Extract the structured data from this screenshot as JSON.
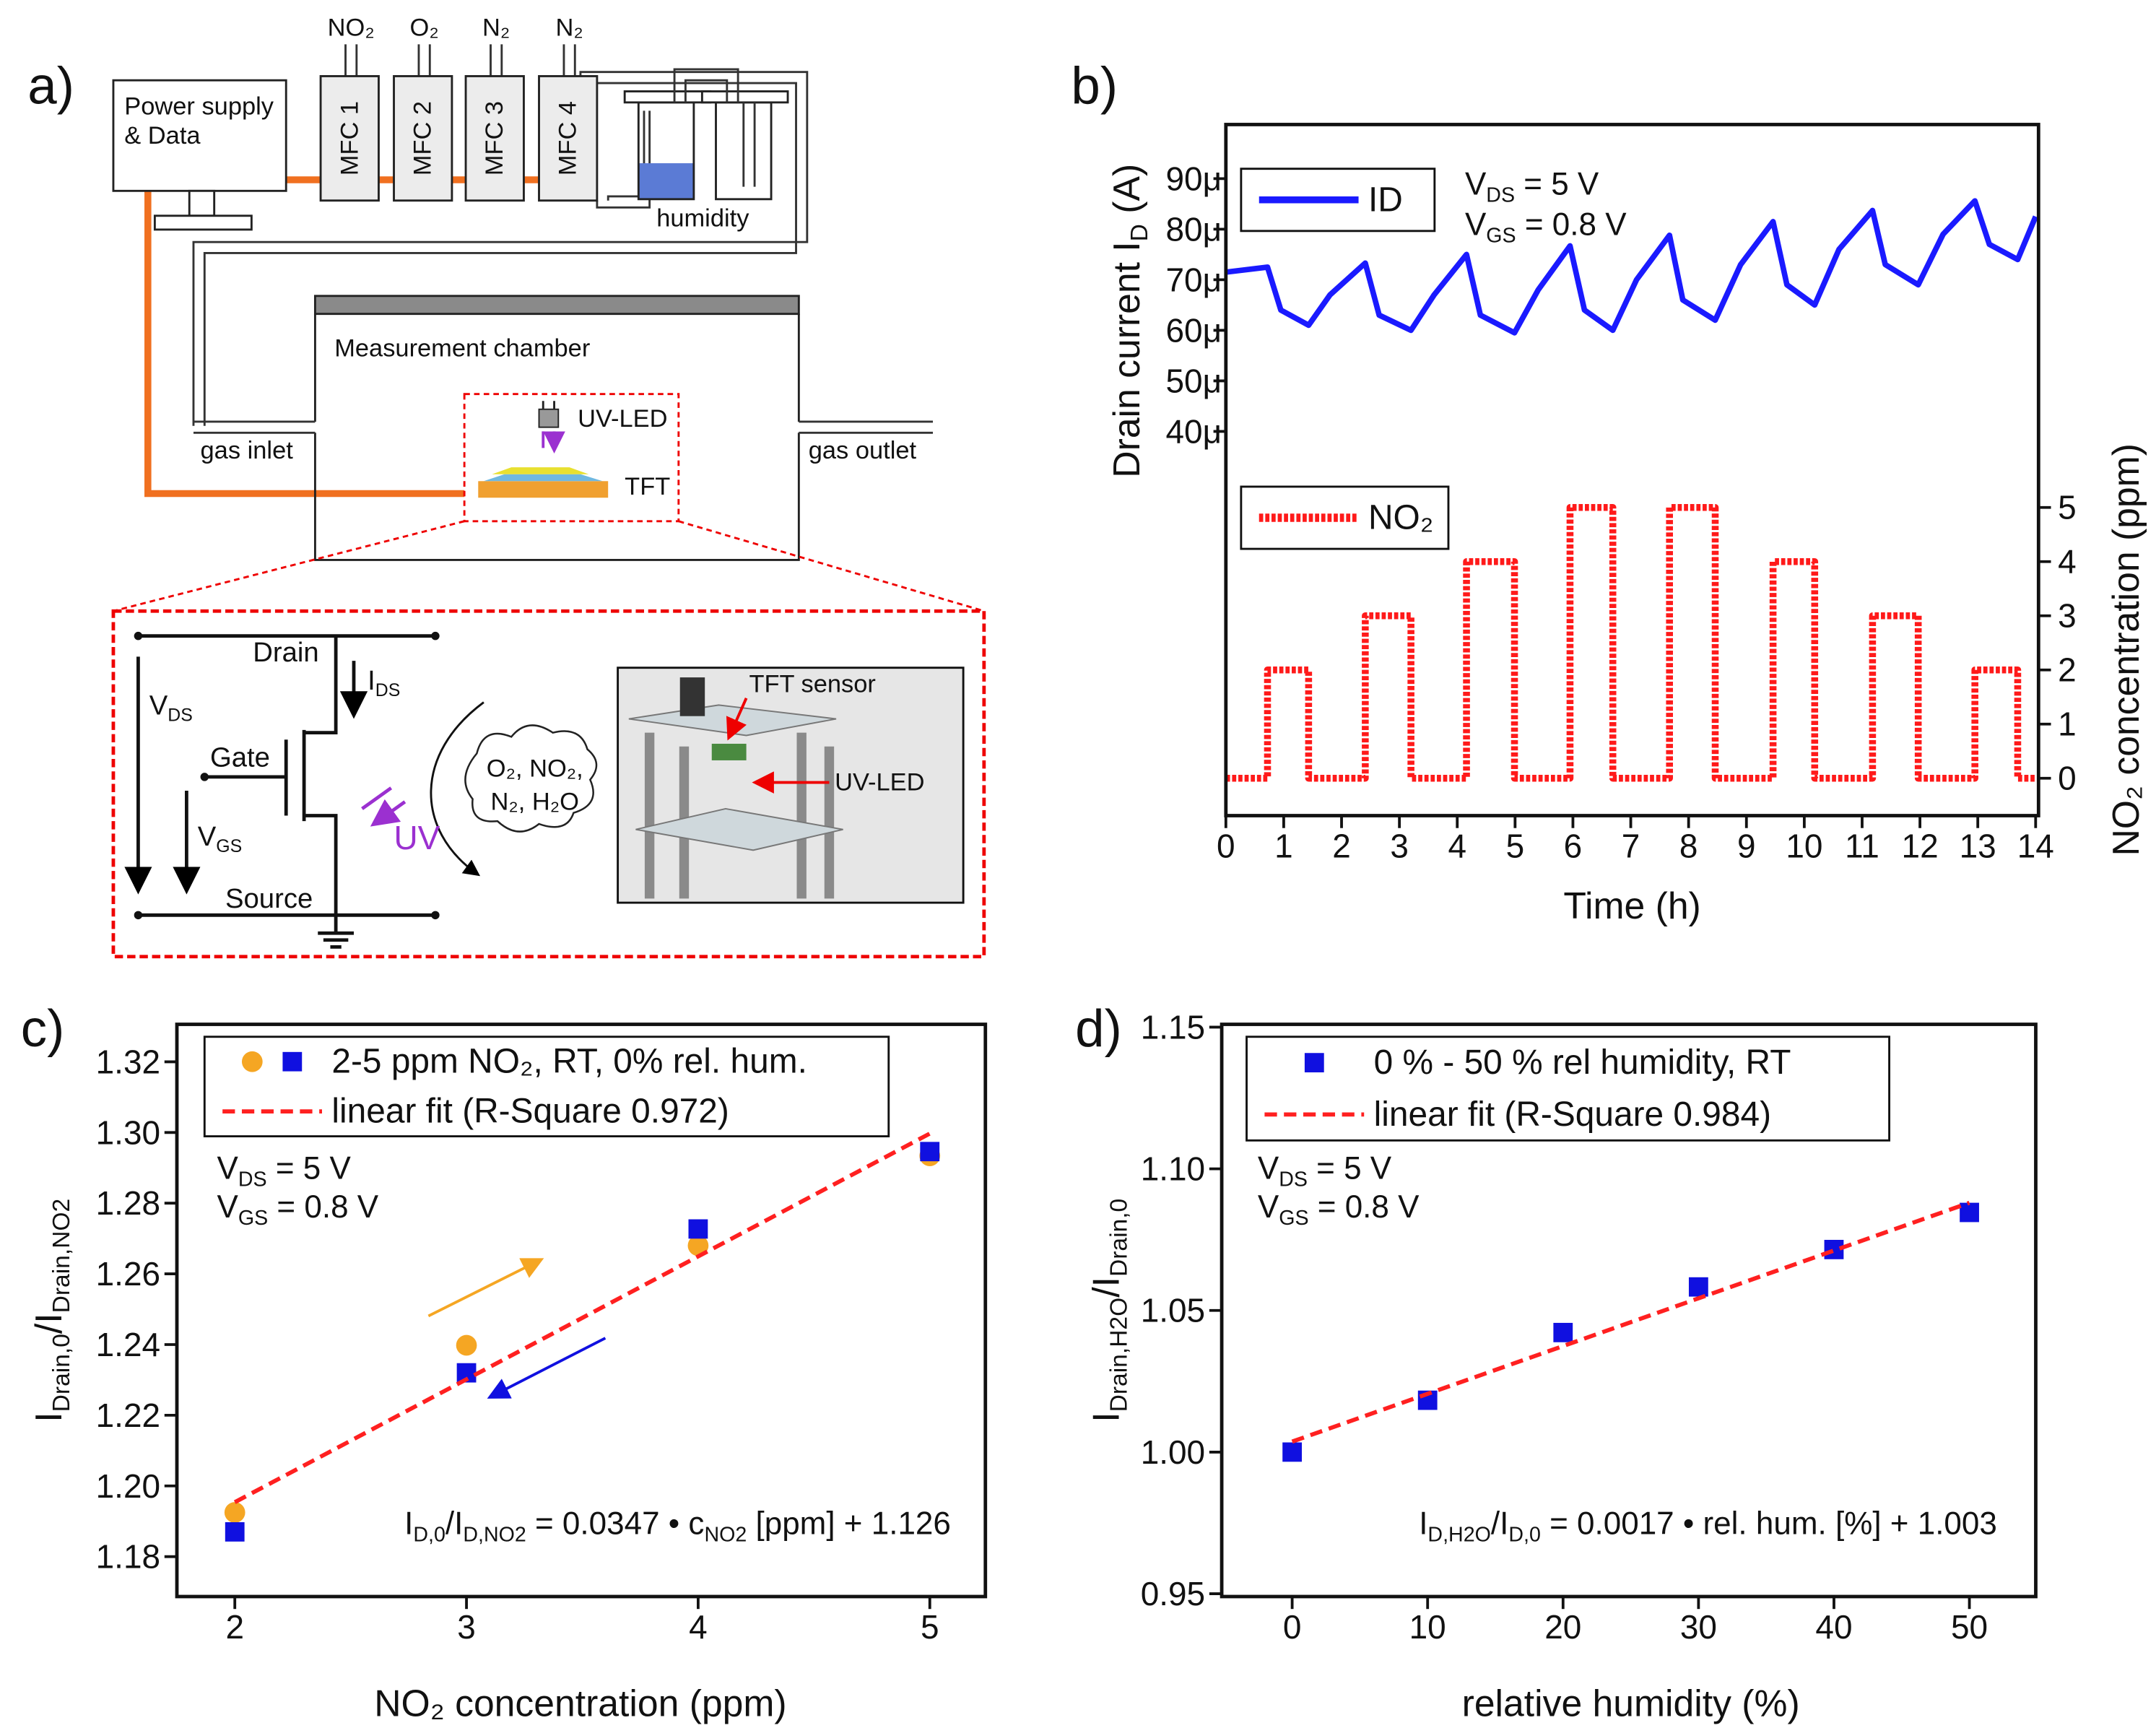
{
  "diagram": {
    "label": "a)",
    "power_supply": [
      "Power supply",
      "& Data"
    ],
    "gases": [
      "NO₂",
      "O₂",
      "N₂",
      "N₂"
    ],
    "mfcs": [
      "MFC 1",
      "MFC 2",
      "MFC 3",
      "MFC 4"
    ],
    "humidity": "humidity",
    "chamber": "Measurement chamber",
    "uv_led": "UV-LED",
    "tft": "TFT",
    "gas_inlet": "gas inlet",
    "gas_outlet": "gas outlet",
    "drain": "Drain",
    "ids": [
      "I",
      "DS"
    ],
    "vds": [
      "V",
      "DS"
    ],
    "gate": "Gate",
    "vgs": [
      "V",
      "GS"
    ],
    "uv": "UV",
    "source": "Source",
    "gas_cloud": [
      "O₂, NO₂,",
      "N₂, H₂O"
    ],
    "tft_sensor": "TFT sensor",
    "photo_uv_led": "UV-LED"
  },
  "chart_data": [
    {
      "type": "line",
      "label": "b)",
      "xlabel": "Time (h)",
      "ylabel": [
        "Drain current I",
        "D",
        " (A)"
      ],
      "y2label": "NO₂ concentration (ppm)",
      "xlim": [
        0,
        14.05
      ],
      "xticks": [
        0,
        1,
        2,
        3,
        4,
        5,
        6,
        7,
        8,
        9,
        10,
        11,
        12,
        13,
        14
      ],
      "ylim": [
        -3.6e-05,
        0.0001007
      ],
      "yticks": [
        {
          "value": 4e-05,
          "label": "40μ"
        },
        {
          "value": 5e-05,
          "label": "50μ"
        },
        {
          "value": 6e-05,
          "label": "60μ"
        },
        {
          "value": 7e-05,
          "label": "70μ"
        },
        {
          "value": 8e-05,
          "label": "80μ"
        },
        {
          "value": 9e-05,
          "label": "90μ"
        }
      ],
      "y2lim": [
        -0.69,
        12.07
      ],
      "y2ticks": [
        0,
        1,
        2,
        3,
        4,
        5
      ],
      "annotations": [
        [
          "V",
          "DS",
          " = 5 V"
        ],
        [
          "V",
          "GS",
          " = 0.8 V"
        ]
      ],
      "series": [
        {
          "name": "ID",
          "color": "#1a1aff",
          "line": "solid",
          "x": [
            0,
            0.72,
            0.95,
            1.43,
            1.8,
            2.41,
            2.65,
            3.2,
            3.6,
            4.16,
            4.4,
            4.99,
            5.4,
            5.95,
            6.2,
            6.69,
            7.1,
            7.67,
            7.9,
            8.46,
            8.9,
            9.46,
            9.7,
            10.18,
            10.6,
            11.18,
            11.4,
            11.97,
            12.4,
            12.95,
            13.2,
            13.69,
            14
          ],
          "values": [
            7.15e-05,
            7.25e-05,
            6.4e-05,
            6.1e-05,
            6.7e-05,
            7.33e-05,
            6.3e-05,
            6e-05,
            6.7e-05,
            7.5e-05,
            6.3e-05,
            5.95e-05,
            6.8e-05,
            7.67e-05,
            6.4e-05,
            6e-05,
            7e-05,
            7.88e-05,
            6.6e-05,
            6.2e-05,
            7.3e-05,
            8.15e-05,
            6.9e-05,
            6.5e-05,
            7.6e-05,
            8.37e-05,
            7.3e-05,
            6.9e-05,
            7.9e-05,
            8.56e-05,
            7.7e-05,
            7.4e-05,
            8.25e-05
          ]
        },
        {
          "name": "NO₂",
          "color": "#ff1a1a",
          "line": "dotted",
          "axis": "y2",
          "x": [
            0,
            0.72,
            0.72,
            1.43,
            1.43,
            2.41,
            2.41,
            3.2,
            3.2,
            4.16,
            4.16,
            4.99,
            4.99,
            5.95,
            5.95,
            6.69,
            6.69,
            7.67,
            7.67,
            8.46,
            8.46,
            9.46,
            9.46,
            10.18,
            10.18,
            11.18,
            11.18,
            11.97,
            11.97,
            12.95,
            12.95,
            13.69,
            13.69,
            14
          ],
          "values": [
            0,
            0,
            2,
            2,
            0,
            0,
            3,
            3,
            0,
            0,
            4,
            4,
            0,
            0,
            5,
            5,
            0,
            0,
            5,
            5,
            0,
            0,
            4,
            4,
            0,
            0,
            3,
            3,
            0,
            0,
            2,
            2,
            0,
            0
          ]
        }
      ]
    },
    {
      "type": "scatter",
      "label": "c)",
      "xlabel": "NO₂ concentration (ppm)",
      "ylabel": [
        "I",
        "Drain,0",
        "/I",
        "Drain,NO2"
      ],
      "xlim": [
        1.75,
        5.24
      ],
      "xticks": [
        2,
        3,
        4,
        5
      ],
      "ylim": [
        1.1687,
        1.3306
      ],
      "yticks": [
        1.18,
        {
          "value": 1.2,
          "label": "1.20"
        },
        1.22,
        1.24,
        1.26,
        1.28,
        {
          "value": 1.3,
          "label": "1.30"
        },
        1.32
      ],
      "annotations": [
        [
          "V",
          "DS",
          " = 5 V"
        ],
        [
          "V",
          "GS",
          " = 0.8 V"
        ]
      ],
      "equation": [
        "I",
        "D,0",
        "/I",
        "D,NO2",
        " = 0.0347 • c",
        "NO2",
        " [ppm] + 1.126"
      ],
      "series": [
        {
          "name": "2-5 ppm NO₂, RT, 0% rel. hum.",
          "color": "#f5a623",
          "marker": "circle",
          "x": [
            2,
            3,
            4,
            5
          ],
          "values": [
            1.1925,
            1.2398,
            1.268,
            1.2934
          ]
        },
        {
          "color": "#1010e0",
          "marker": "square",
          "x": [
            2,
            3,
            4,
            5
          ],
          "values": [
            1.187,
            1.232,
            1.2727,
            1.2946
          ]
        },
        {
          "name": "linear fit (R-Square 0.972)",
          "color": "#ff2020",
          "line": "dashed",
          "x": [
            2,
            5
          ],
          "values": [
            1.1954,
            1.2997
          ]
        }
      ]
    },
    {
      "type": "scatter",
      "label": "d)",
      "xlabel": "relative humidity (%)",
      "ylabel": [
        "I",
        "Drain,H2O",
        "/I",
        "Drain,0"
      ],
      "xlim": [
        -5.2,
        54.9
      ],
      "xticks": [
        0,
        10,
        20,
        30,
        40,
        50
      ],
      "ylim": [
        0.949,
        1.151
      ],
      "yticks": [
        0.95,
        {
          "value": 1,
          "label": "1.00"
        },
        1.05,
        {
          "value": 1.1,
          "label": "1.10"
        },
        1.15
      ],
      "annotations": [
        [
          "V",
          "DS",
          " = 5 V"
        ],
        [
          "V",
          "GS",
          " = 0.8 V"
        ]
      ],
      "equation": [
        "I",
        "D,H2O",
        "/I",
        "D,0",
        " = 0.0017 • rel. hum. [%] + 1.003"
      ],
      "series": [
        {
          "name": "0 % - 50 % rel humidity, RT",
          "color": "#1010e0",
          "marker": "square",
          "x": [
            0,
            10,
            20,
            30,
            40,
            50
          ],
          "values": [
            1.0,
            1.0183,
            1.0422,
            1.0583,
            1.0715,
            1.0846
          ]
        },
        {
          "name": "linear fit (R-Square 0.984)",
          "color": "#ff2020",
          "line": "dashed",
          "x": [
            0,
            50
          ],
          "values": [
            1.0037,
            1.088
          ]
        }
      ]
    }
  ]
}
